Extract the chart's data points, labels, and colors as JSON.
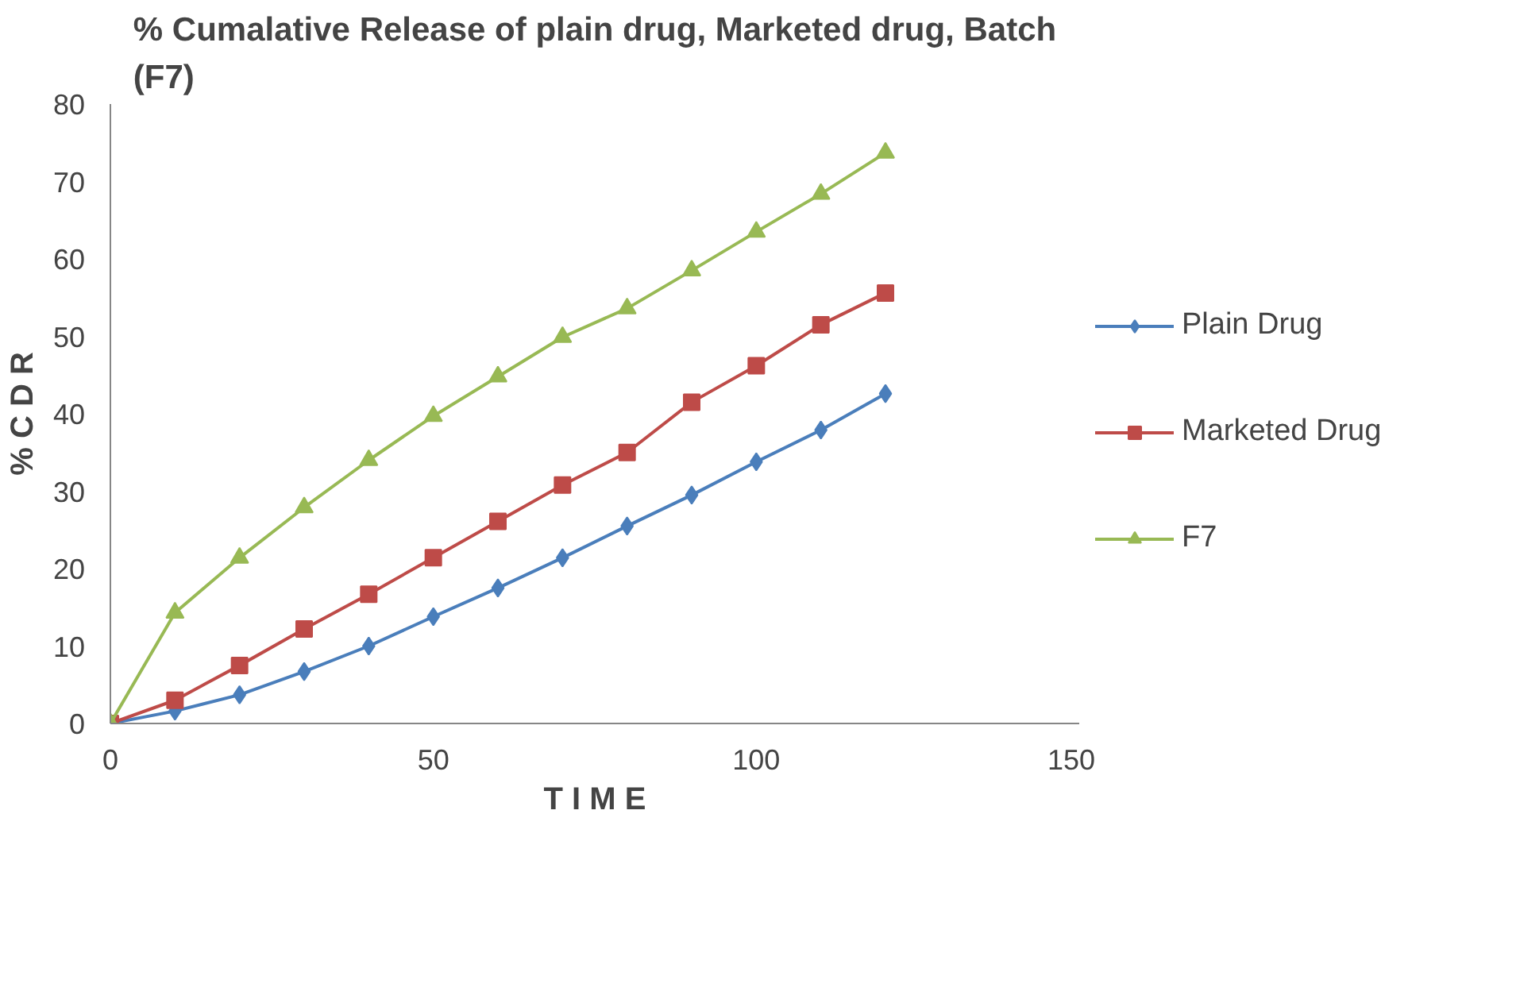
{
  "chart_data": {
    "type": "line",
    "title": "% Cumalative Release of plain drug, Marketed drug, Batch (F7)",
    "xlabel": "T I M E",
    "ylabel": "% C D R",
    "x": [
      0,
      10,
      20,
      30,
      40,
      50,
      60,
      70,
      80,
      90,
      100,
      110,
      120
    ],
    "xlim": [
      0,
      150
    ],
    "xticks": [
      0,
      50,
      100,
      150
    ],
    "ylim": [
      0,
      80
    ],
    "yticks": [
      0,
      10,
      20,
      30,
      40,
      50,
      60,
      70,
      80
    ],
    "grid": false,
    "legend": "right",
    "series": [
      {
        "name": "Plain Drug",
        "color": "#4a7ebb",
        "marker": "diamond",
        "values": [
          0,
          1.6,
          3.7,
          6.7,
          10,
          13.8,
          17.5,
          21.4,
          25.5,
          29.5,
          33.8,
          37.9,
          42.6
        ]
      },
      {
        "name": "Marketed Drug",
        "color": "#be4b48",
        "marker": "square",
        "values": [
          0,
          3,
          7.5,
          12.2,
          16.7,
          21.4,
          26.1,
          30.8,
          35,
          41.5,
          46.2,
          51.5,
          55.6
        ]
      },
      {
        "name": "F7",
        "color": "#98b954",
        "marker": "triangle",
        "values": [
          0,
          14.3,
          21.4,
          27.9,
          34,
          39.7,
          44.8,
          49.9,
          53.6,
          58.5,
          63.5,
          68.4,
          73.7
        ]
      }
    ]
  }
}
